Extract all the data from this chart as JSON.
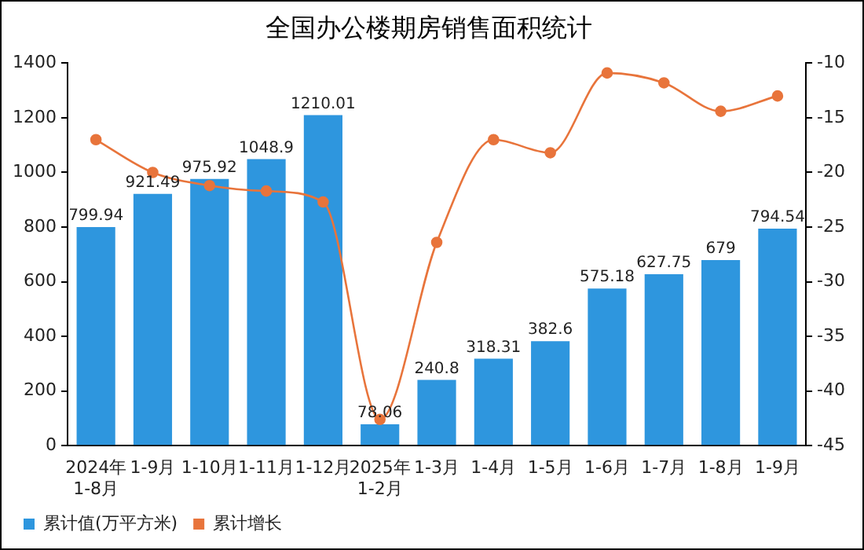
{
  "chart_data": {
    "type": "bar",
    "title": "全国办公楼期房销售面积统计",
    "categories": [
      "2024年\n1-8月",
      "1-9月",
      "1-10月",
      "1-11月",
      "1-12月",
      "2025年\n1-2月",
      "1-3月",
      "1-4月",
      "1-5月",
      "1-6月",
      "1-7月",
      "1-8月",
      "1-9月"
    ],
    "series": [
      {
        "name": "累计值(万平方米)",
        "color": "#2e96de",
        "values": [
          799.94,
          921.49,
          975.92,
          1048.9,
          1210.01,
          78.06,
          240.8,
          318.31,
          382.6,
          575.18,
          627.75,
          679,
          794.54
        ],
        "value_labels": [
          "799.94",
          "921.49",
          "975.92",
          "1048.9",
          "1210.01",
          "78.06",
          "240.8",
          "318.31",
          "382.6",
          "575.18",
          "627.75",
          "679",
          "794.54"
        ]
      },
      {
        "name": "累计增长",
        "type": "line",
        "axis": "y2",
        "color": "#e8743b",
        "values": [
          -17.0,
          -20.0,
          -21.2,
          -21.7,
          -22.7,
          -42.6,
          -26.4,
          -17.0,
          -18.2,
          -10.9,
          -11.8,
          -14.4,
          -13.0
        ]
      }
    ],
    "ylim": [
      0,
      1400
    ],
    "yticks": [
      0,
      200,
      400,
      600,
      800,
      1000,
      1200,
      1400
    ],
    "y2lim": [
      -45,
      -10
    ],
    "y2ticks": [
      -45,
      -40,
      -35,
      -30,
      -25,
      -20,
      -15,
      -10
    ],
    "grid": false,
    "legend": "bottom left",
    "marker": "circle"
  }
}
